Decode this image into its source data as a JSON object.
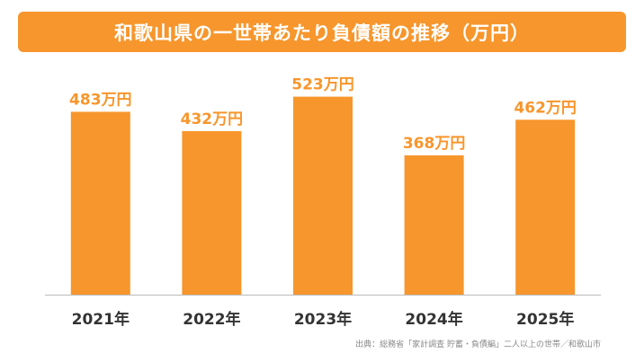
{
  "colors": {
    "accent": "#f7962c",
    "axis": "#bbbbbb",
    "text": "#333333"
  },
  "source_text": "出典：総務省「家計調査 貯蓄・負債編」二人以上の世帯／和歌山市",
  "chart_data": {
    "type": "bar",
    "title": "和歌山県の一世帯あたり負債額の推移（万円）",
    "categories": [
      "2021年",
      "2022年",
      "2023年",
      "2024年",
      "2025年"
    ],
    "values": [
      483,
      432,
      523,
      368,
      462
    ],
    "data_labels": [
      "483万円",
      "432万円",
      "523万円",
      "368万円",
      "462万円"
    ],
    "ylim": [
      0,
      560
    ],
    "grid": false
  }
}
